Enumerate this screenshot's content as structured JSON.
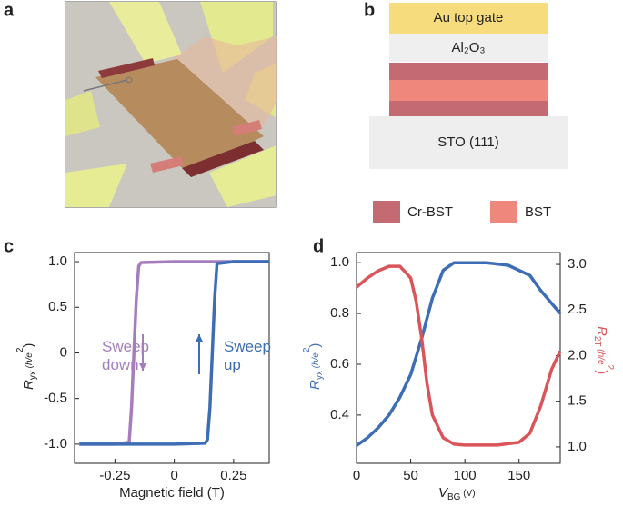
{
  "panel_labels": [
    "a",
    "b",
    "c",
    "d"
  ],
  "stack": {
    "layers": [
      "Au top gate",
      "Al₂O₃",
      "STO (111)"
    ],
    "legend": [
      {
        "name": "Cr-BST",
        "color": "#c46a72"
      },
      {
        "name": "BST",
        "color": "#f0877c"
      }
    ]
  },
  "chart_data": [
    {
      "type": "line",
      "xlabel": "Magnetic field (T)",
      "ylabel": [
        "R",
        "yx",
        " (h/e",
        "2",
        ")"
      ],
      "xlim": [
        -0.42,
        0.4
      ],
      "ylim": [
        -1.21,
        1.1
      ],
      "xticks": [
        -0.25,
        0,
        0.25
      ],
      "yticks": [
        {
          "value": -1,
          "label": "-1.0"
        },
        {
          "value": -0.5,
          "label": "-0.5"
        },
        0,
        {
          "value": 0.5,
          "label": "0.5"
        },
        {
          "value": 1,
          "label": "1.0"
        }
      ],
      "series": [
        {
          "annotation": [
            "Sweep",
            "down"
          ],
          "color": "#a57dbd",
          "x": [
            0.4,
            0.0,
            -0.14,
            -0.15,
            -0.16,
            -0.17,
            -0.18,
            -0.19,
            -0.25,
            -0.4
          ],
          "values": [
            1,
            1,
            0.99,
            0.95,
            0.6,
            0,
            -0.6,
            -0.98,
            -1,
            -1
          ]
        },
        {
          "annotation": [
            "Sweep",
            "up"
          ],
          "color": "#3d6db5",
          "x": [
            -0.4,
            0.0,
            0.13,
            0.14,
            0.15,
            0.16,
            0.17,
            0.18,
            0.25,
            0.4
          ],
          "values": [
            -1,
            -1,
            -0.99,
            -0.95,
            -0.6,
            0,
            0.6,
            0.98,
            1,
            1
          ]
        }
      ]
    },
    {
      "type": "line",
      "xlabel": [
        "V",
        "BG",
        " (V)"
      ],
      "ylabel": [
        "R",
        "yx",
        " (h/e",
        "2",
        ")"
      ],
      "y2label": [
        "R",
        "2T",
        " (h/e",
        "2",
        ")"
      ],
      "xlim": [
        0,
        188
      ],
      "ylim": [
        0.21,
        1.04
      ],
      "y2lim": [
        0.82,
        3.13
      ],
      "xticks": [
        0,
        50,
        100,
        150
      ],
      "yticks": [
        0.4,
        0.6,
        0.8,
        {
          "value": 1,
          "label": "1.0"
        }
      ],
      "y2ticks": [
        {
          "value": 1,
          "label": "1.0"
        },
        1.5,
        {
          "value": 2,
          "label": "2.0"
        },
        2.5,
        {
          "value": 3,
          "label": "3.0"
        }
      ],
      "series": [
        {
          "color": "#3d6db5",
          "x": [
            0,
            10,
            20,
            30,
            40,
            50,
            60,
            70,
            80,
            90,
            100,
            120,
            140,
            160,
            170,
            180,
            188
          ],
          "values": [
            0.28,
            0.31,
            0.35,
            0.4,
            0.47,
            0.56,
            0.7,
            0.86,
            0.97,
            1.0,
            1.0,
            1.0,
            0.99,
            0.95,
            0.89,
            0.84,
            0.8
          ]
        },
        {
          "color": "#d9555a",
          "axis": "y2",
          "x": [
            0,
            10,
            20,
            30,
            40,
            50,
            55,
            60,
            65,
            70,
            80,
            90,
            100,
            130,
            150,
            160,
            170,
            180,
            188
          ],
          "values": [
            2.75,
            2.85,
            2.93,
            2.98,
            2.98,
            2.85,
            2.6,
            2.2,
            1.7,
            1.35,
            1.1,
            1.03,
            1.02,
            1.02,
            1.05,
            1.15,
            1.45,
            1.85,
            2.05
          ]
        }
      ]
    }
  ]
}
